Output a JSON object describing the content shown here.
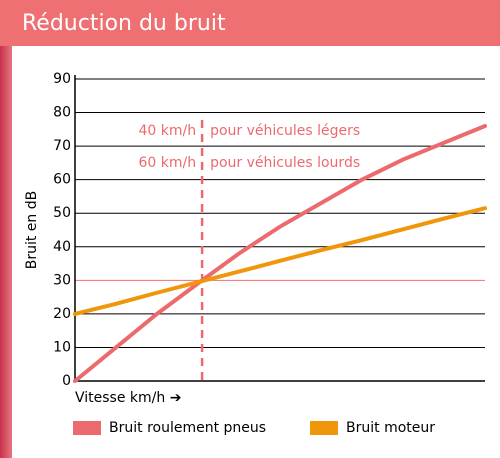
{
  "header": {
    "title": "Réduction du bruit"
  },
  "chart_data": {
    "type": "line",
    "ylabel": "Bruit en dB",
    "xlabel": "Vitesse km/h ➔",
    "x": [
      0,
      10,
      20,
      31,
      40,
      50,
      60,
      70,
      80,
      90,
      100
    ],
    "xlim": [
      0,
      100
    ],
    "ylim": [
      0,
      90
    ],
    "yticks": [
      0,
      10,
      20,
      30,
      40,
      50,
      60,
      70,
      80,
      90
    ],
    "grid": true,
    "reference_y": 30,
    "reference_x": 31,
    "annotations": [
      "40 km/h",
      "pour véhicules légers",
      "60 km/h",
      "pour véhicules lourds"
    ],
    "series": [
      {
        "name": "Bruit roulement pneus",
        "color": "#ec6a6e",
        "values": [
          0,
          10,
          20,
          30,
          38,
          46,
          53,
          60,
          66,
          71,
          76
        ]
      },
      {
        "name": "Bruit moteur",
        "color": "#f0960a",
        "values": [
          20,
          23,
          26.3,
          29.8,
          32.6,
          35.8,
          39,
          42,
          45.2,
          48.4,
          51.5
        ]
      }
    ]
  }
}
